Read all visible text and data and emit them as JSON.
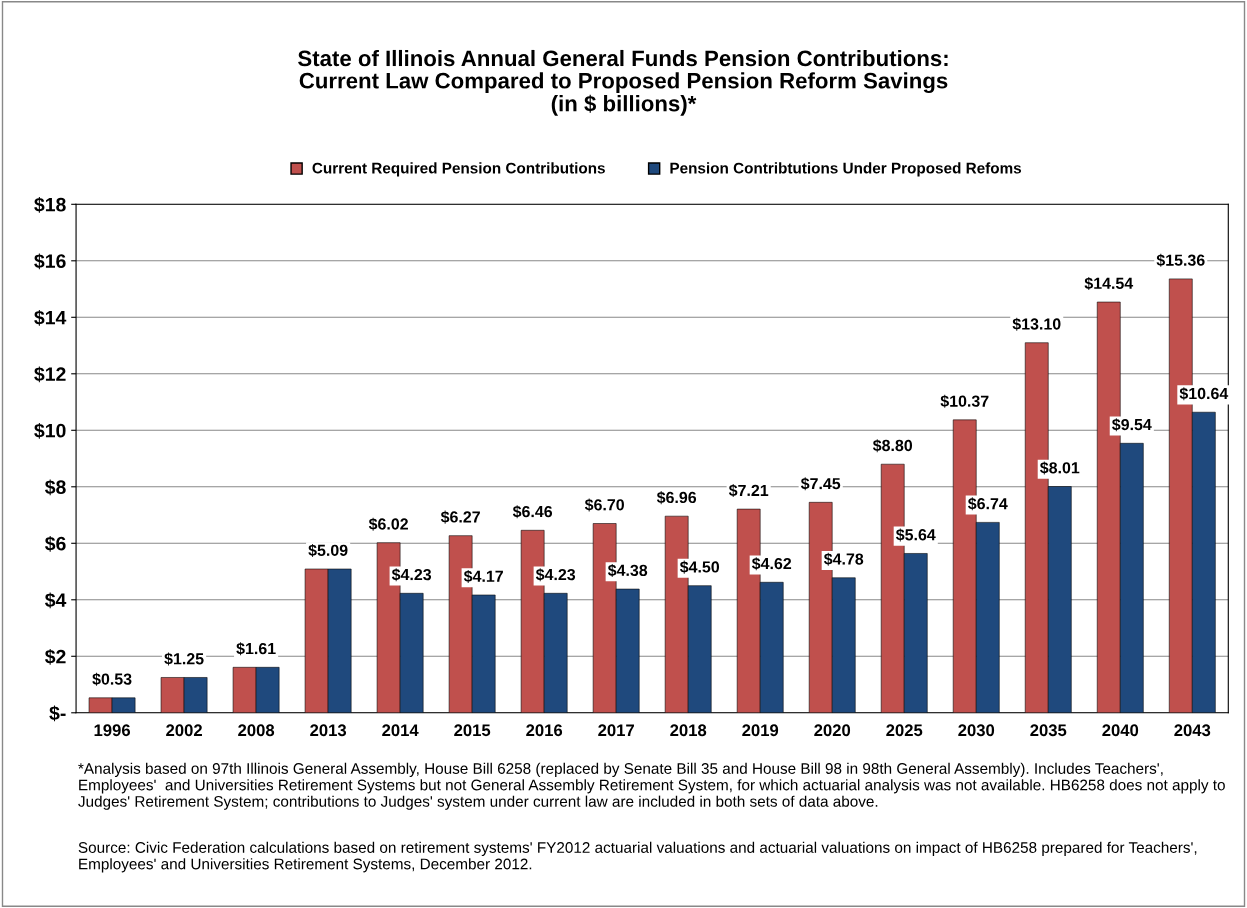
{
  "chart_data": {
    "type": "bar",
    "title": "State of Illinois Annual General Funds Pension Contributions:\nCurrent Law Compared to Proposed Pension Reform Savings\n(in $ billions)*",
    "categories": [
      "1996",
      "2002",
      "2008",
      "2013",
      "2014",
      "2015",
      "2016",
      "2017",
      "2018",
      "2019",
      "2020",
      "2025",
      "2030",
      "2035",
      "2040",
      "2043"
    ],
    "series": [
      {
        "name": "Current Required Pension Contributions",
        "color": "#c0504d",
        "values": [
          0.53,
          1.25,
          1.61,
          5.09,
          6.02,
          6.27,
          6.46,
          6.7,
          6.96,
          7.21,
          7.45,
          8.8,
          10.37,
          13.1,
          14.54,
          15.36
        ],
        "value_labels": [
          "$0.53",
          "$1.25",
          "$1.61",
          "$5.09",
          "$6.02",
          "$6.27",
          "$6.46",
          "$6.70",
          "$6.96",
          "$7.21",
          "$7.45",
          "$8.80",
          "$10.37",
          "$13.10",
          "$14.54",
          "$15.36"
        ]
      },
      {
        "name": "Pension Contribtutions Under Proposed Refoms",
        "color": "#1f497d",
        "values": [
          0.53,
          1.25,
          1.61,
          5.09,
          4.23,
          4.17,
          4.23,
          4.38,
          4.5,
          4.62,
          4.78,
          5.64,
          6.74,
          8.01,
          9.54,
          10.64
        ],
        "value_labels": [
          null,
          null,
          null,
          null,
          "$4.23",
          "$4.17",
          "$4.23",
          "$4.38",
          "$4.50",
          "$4.62",
          "$4.78",
          "$5.64",
          "$6.74",
          "$8.01",
          "$9.54",
          "$10.64"
        ]
      }
    ],
    "ylim": [
      0,
      18
    ],
    "yticks": [
      {
        "value": 0,
        "label": "$-"
      },
      {
        "value": 2,
        "label": "$2"
      },
      {
        "value": 4,
        "label": "$4"
      },
      {
        "value": 6,
        "label": "$6"
      },
      {
        "value": 8,
        "label": "$8"
      },
      {
        "value": 10,
        "label": "$10"
      },
      {
        "value": 12,
        "label": "$12"
      },
      {
        "value": 14,
        "label": "$14"
      },
      {
        "value": 16,
        "label": "$16"
      },
      {
        "value": 18,
        "label": "$18"
      }
    ],
    "grid": "y",
    "legend": "top",
    "annotations": [
      "*Analysis based on 97th Illinois General Assembly, House Bill 6258 (replaced by Senate Bill 35 and House Bill 98 in 98th General Assembly). Includes Teachers', Employees'  and Universities Retirement Systems but not General Assembly Retirement System, for which actuarial analysis was not available. HB6258 does not apply to Judges' Retirement System; contributions to Judges' system under current law are included in both sets of data above.",
      "Source: Civic Federation calculations based on retirement systems' FY2012 actuarial valuations and actuarial valuations on impact of HB6258 prepared for Teachers', Employees' and Universities Retirement Systems, December 2012."
    ]
  }
}
